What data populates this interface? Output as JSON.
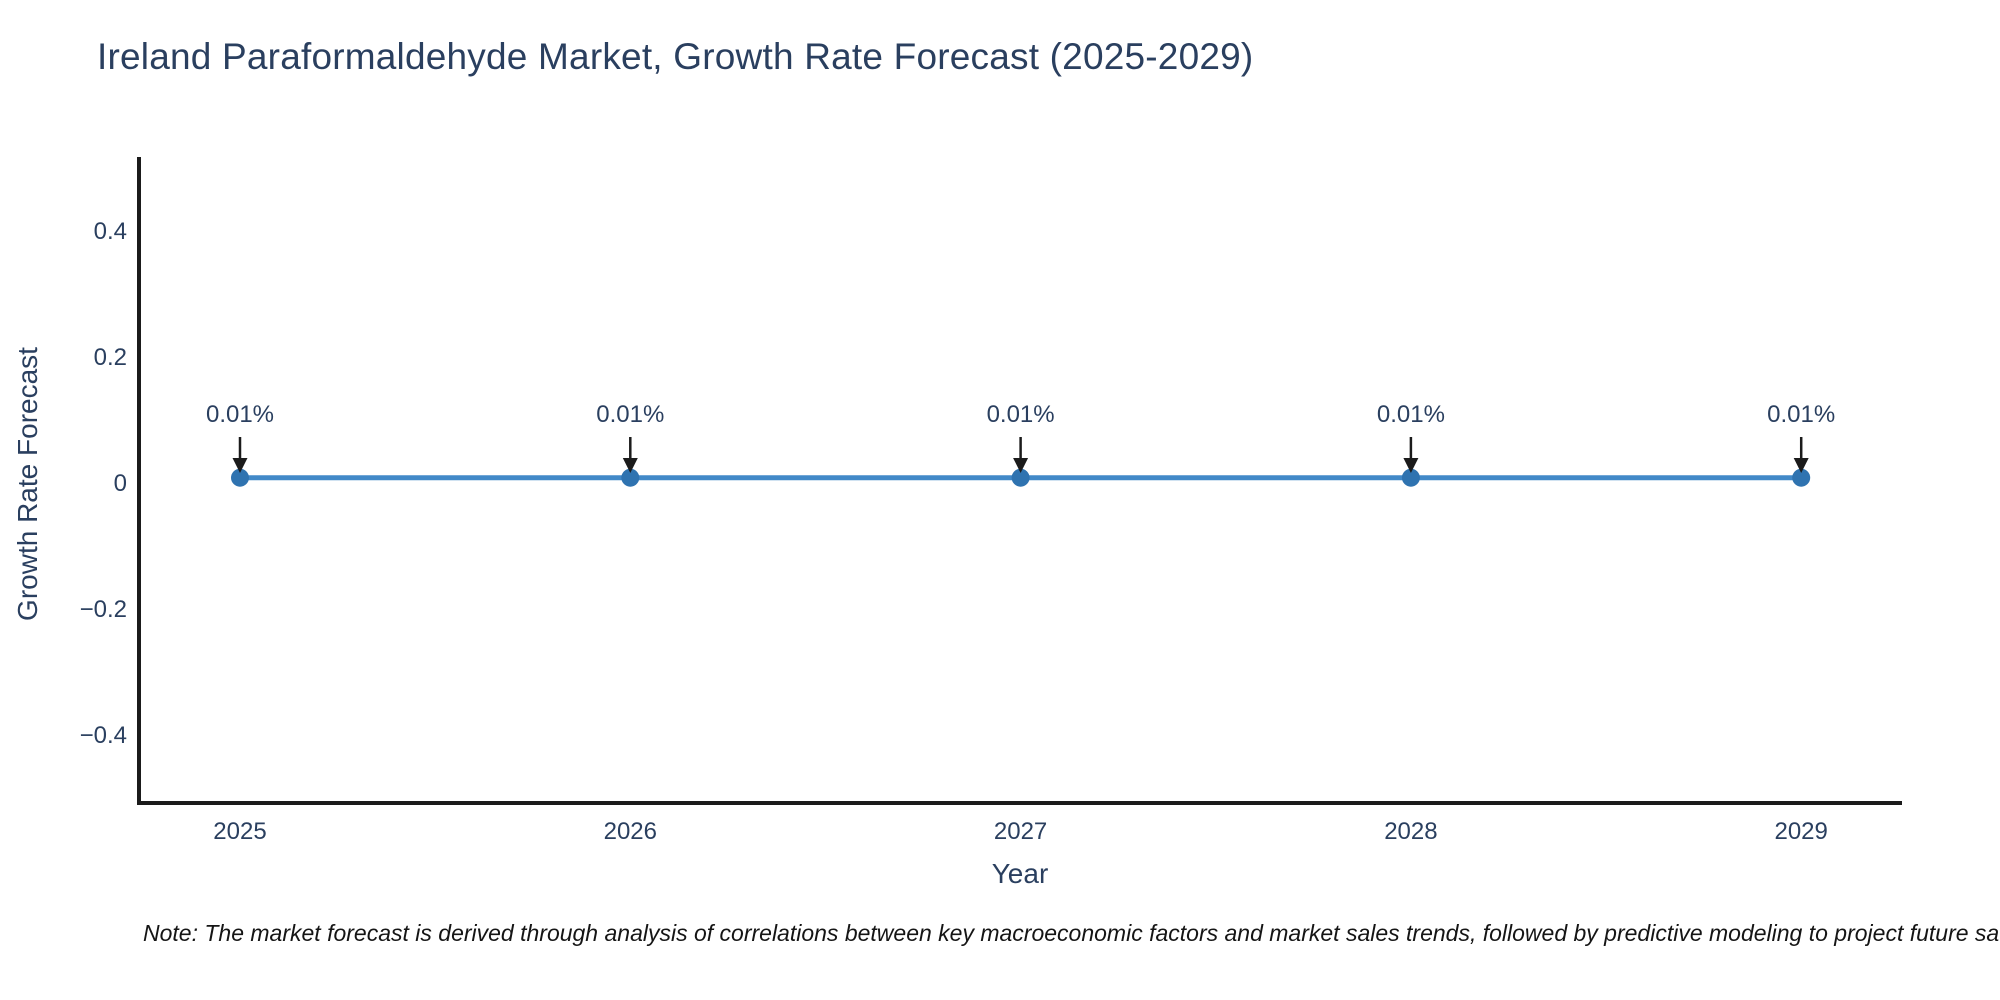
{
  "title": {
    "text": "Ireland Paraformaldehyde Market, Growth Rate Forecast (2025-2029)"
  },
  "note": {
    "text": "Note: The market forecast is derived through analysis of correlations between key macroeconomic factors and market sales trends, followed by predictive modeling to project future sa"
  },
  "chart_data": {
    "type": "line",
    "title": "Ireland Paraformaldehyde Market, Growth Rate Forecast (2025-2029)",
    "xlabel": "Year",
    "ylabel": "Growth Rate Forecast",
    "x": [
      2025,
      2026,
      2027,
      2028,
      2029
    ],
    "series": [
      {
        "name": "Growth Rate Forecast",
        "values": [
          0.01,
          0.01,
          0.01,
          0.01,
          0.01
        ]
      }
    ],
    "point_labels": [
      "0.01%",
      "0.01%",
      "0.01%",
      "0.01%",
      "0.01%"
    ],
    "yticks": [
      "0.4",
      "0.2",
      "0",
      "−0.2",
      "−0.4"
    ],
    "ytick_values": [
      0.4,
      0.2,
      0,
      -0.2,
      -0.4
    ],
    "ylim": [
      -0.5,
      0.5
    ],
    "grid": false,
    "legend": "none",
    "line_color": "#4289c8",
    "marker_color": "#2f73b0",
    "arrow_color": "#1b1b1b",
    "axis_color": "#1b1b1b",
    "text_color": "#2a3f5f",
    "background_color": "#ffffff"
  }
}
